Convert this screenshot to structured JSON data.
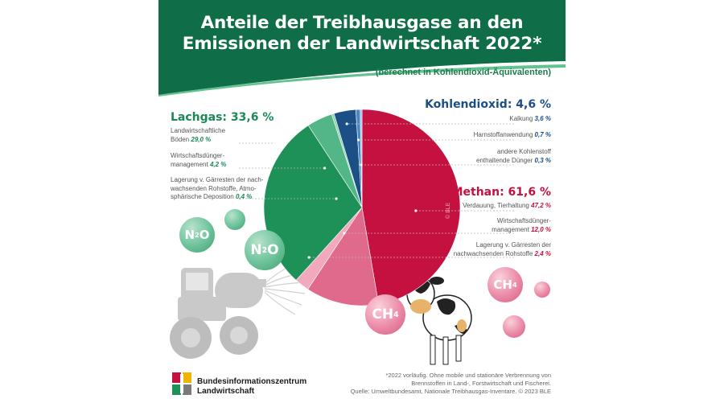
{
  "title_line1": "Anteile der Treibhausgase an den",
  "title_line2": "Emissionen der Landwirtschaft 2022*",
  "subtitle": "(berechnet in Kohlendioxid-Äquivalenten)",
  "colors": {
    "header_green": "#0f6e48",
    "header_light_green": "#63c28f",
    "n2o_dark": "#1e9158",
    "n2o_mid": "#52b688",
    "co2_dark": "#1b4f86",
    "co2_mid": "#4b86c0",
    "ch4_dark": "#c4113f",
    "ch4_mid": "#e06a8b",
    "ch4_light": "#f2a8bd"
  },
  "chart_data": {
    "type": "pie",
    "groups": [
      {
        "name": "Lachgas",
        "total_label": "Lachgas: 33,6 %",
        "total": 33.6,
        "items": [
          {
            "label_lines": [
              "Landwirtschaftliche",
              "Böden"
            ],
            "value": 29.0,
            "value_label": "29,0 %"
          },
          {
            "label_lines": [
              "Wirtschaftsdünger-",
              "management"
            ],
            "value": 4.2,
            "value_label": "4,2 %"
          },
          {
            "label_lines": [
              "Lagerung v. Gärresten der nach-",
              "wachsenden Rohstoffe, Atmo-",
              "sphärische Deposition"
            ],
            "value": 0.4,
            "value_label": "0,4 %"
          }
        ]
      },
      {
        "name": "Kohlendioxid",
        "total_label": "Kohlendioxid: 4,6 %",
        "total": 4.6,
        "items": [
          {
            "label_lines": [
              "Kalkung"
            ],
            "value": 3.6,
            "value_label": "3,6 %"
          },
          {
            "label_lines": [
              "Harnstoffanwendung"
            ],
            "value": 0.7,
            "value_label": "0,7 %"
          },
          {
            "label_lines": [
              "andere Kohlenstoff",
              "enthaltende Dünger"
            ],
            "value": 0.3,
            "value_label": "0,3 %"
          }
        ]
      },
      {
        "name": "Methan",
        "total_label": "Methan: 61,6 %",
        "total": 61.6,
        "items": [
          {
            "label_lines": [
              "Verdauung, Tierhaltung"
            ],
            "value": 47.2,
            "value_label": "47,2 %"
          },
          {
            "label_lines": [
              "Wirtschaftsdünger-",
              "management"
            ],
            "value": 12.0,
            "value_label": "12,0 %"
          },
          {
            "label_lines": [
              "Lagerung v. Gärresten der",
              "nachwachsenden Rohstoffe"
            ],
            "value": 2.4,
            "value_label": "2,4 %"
          }
        ]
      }
    ]
  },
  "bubbles": {
    "n2o_small": {
      "text": "N",
      "sub": "2",
      "tail": "O"
    },
    "n2o_big": {
      "text": "N",
      "sub": "2",
      "tail": "O"
    },
    "ch4_big": {
      "text": "CH",
      "sub": "4"
    },
    "ch4_small": {
      "text": "CH",
      "sub": "4"
    }
  },
  "watermark": "© BLE",
  "logo": {
    "line1": "Bundesinformationszentrum",
    "line2": "Landwirtschaft"
  },
  "footnote": [
    "*2022 vorläufig. Ohne mobile und stationäre Verbrennung von",
    "Brennstoffen in Land-, Forstwirtschaft und Fischerei.",
    "Quelle: Umweltbundesamt, Nationale Treibhausgas-Inventare. © 2023 BLE"
  ]
}
